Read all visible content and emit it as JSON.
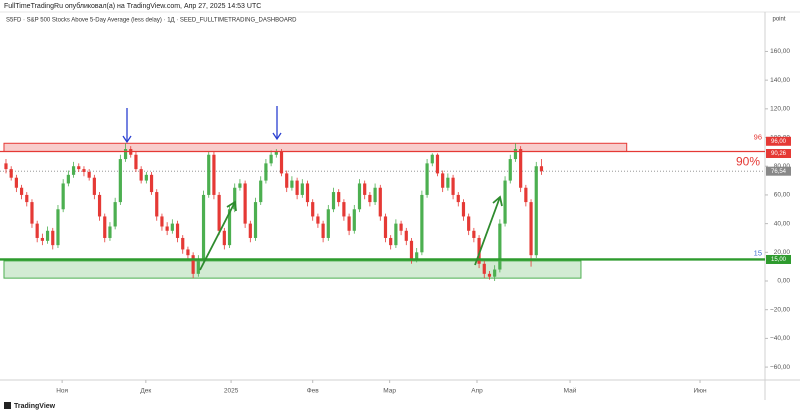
{
  "header": {
    "publisher": "FullTimeTradingRu опубликовал(а) на TradingView.com, Апр 27, 2025 14:53 UTC"
  },
  "footer": {
    "brand": "TradingView"
  },
  "chart_data": {
    "type": "candlestick",
    "title": "S5FD · S&P 500 Stocks Above 5-Day Average (less delay) · 1Д · SEED_FULLTIMETRADING_DASHBOARD",
    "y_axis_label": "point",
    "up_color": "#4caf50",
    "down_color": "#e53935",
    "open": [
      82,
      78,
      72,
      65,
      60,
      55,
      40,
      30,
      28,
      35,
      25,
      50,
      68,
      74,
      80,
      78,
      76,
      72,
      60,
      45,
      30,
      38,
      55,
      85,
      92,
      88,
      78,
      70,
      74,
      62,
      45,
      38,
      35,
      40,
      30,
      22,
      18,
      5,
      15,
      60,
      88,
      60,
      35,
      25,
      50,
      65,
      68,
      40,
      30,
      55,
      70,
      82,
      88,
      90,
      75,
      65,
      70,
      60,
      68,
      55,
      45,
      40,
      30,
      50,
      62,
      55,
      45,
      35,
      50,
      68,
      60,
      55,
      65,
      45,
      30,
      25,
      40,
      35,
      28,
      15,
      20,
      60,
      82,
      88,
      75,
      65,
      72,
      60,
      55,
      45,
      35,
      30,
      12,
      5,
      3,
      8,
      40,
      70,
      85,
      92,
      65,
      55,
      18,
      80
    ],
    "high": [
      85,
      80,
      74,
      67,
      62,
      57,
      42,
      33,
      38,
      37,
      53,
      71,
      77,
      83,
      82,
      80,
      78,
      74,
      62,
      47,
      41,
      58,
      88,
      96,
      94,
      90,
      80,
      76,
      76,
      64,
      47,
      41,
      43,
      42,
      32,
      24,
      20,
      18,
      63,
      90,
      90,
      62,
      37,
      53,
      68,
      71,
      70,
      42,
      58,
      73,
      85,
      91,
      92,
      92,
      77,
      73,
      72,
      71,
      70,
      57,
      47,
      42,
      53,
      65,
      64,
      57,
      47,
      53,
      71,
      70,
      62,
      68,
      67,
      47,
      32,
      43,
      42,
      37,
      30,
      23,
      63,
      85,
      89,
      89,
      77,
      75,
      74,
      62,
      57,
      47,
      37,
      32,
      14,
      7,
      11,
      43,
      73,
      88,
      96,
      94,
      67,
      57,
      83,
      85
    ],
    "low": [
      75,
      70,
      62,
      57,
      52,
      37,
      27,
      25,
      26,
      22,
      23,
      48,
      66,
      72,
      76,
      73,
      70,
      57,
      42,
      27,
      28,
      36,
      53,
      83,
      86,
      76,
      68,
      68,
      60,
      42,
      35,
      32,
      33,
      27,
      19,
      15,
      2,
      3,
      13,
      58,
      57,
      32,
      22,
      23,
      48,
      63,
      37,
      27,
      28,
      53,
      68,
      80,
      86,
      73,
      62,
      63,
      57,
      58,
      52,
      42,
      37,
      27,
      28,
      48,
      52,
      42,
      32,
      33,
      48,
      57,
      52,
      53,
      42,
      27,
      22,
      23,
      32,
      25,
      12,
      13,
      18,
      58,
      80,
      73,
      62,
      63,
      57,
      52,
      42,
      32,
      27,
      9,
      2,
      1,
      0,
      6,
      38,
      68,
      83,
      62,
      52,
      10,
      16,
      74
    ],
    "close": [
      78,
      72,
      65,
      60,
      55,
      40,
      30,
      28,
      35,
      25,
      50,
      68,
      74,
      80,
      78,
      76,
      72,
      60,
      45,
      30,
      38,
      55,
      85,
      92,
      88,
      78,
      70,
      74,
      62,
      45,
      38,
      35,
      40,
      30,
      22,
      18,
      5,
      15,
      60,
      88,
      60,
      35,
      25,
      50,
      65,
      68,
      40,
      30,
      55,
      70,
      82,
      88,
      90,
      75,
      65,
      70,
      60,
      68,
      55,
      45,
      40,
      30,
      50,
      62,
      55,
      45,
      35,
      50,
      68,
      60,
      55,
      65,
      45,
      30,
      25,
      40,
      35,
      28,
      15,
      20,
      60,
      82,
      88,
      75,
      65,
      72,
      60,
      55,
      45,
      35,
      30,
      12,
      5,
      3,
      8,
      40,
      70,
      85,
      92,
      65,
      55,
      18,
      80,
      76.54
    ],
    "xlim": [
      -1.15,
      146
    ],
    "xticks": [
      {
        "value": 10.8,
        "label": "Ноя"
      },
      {
        "value": 26.9,
        "label": "Дек"
      },
      {
        "value": 43.3,
        "label": "2025"
      },
      {
        "value": 59,
        "label": "Фев"
      },
      {
        "value": 73.8,
        "label": "Мар"
      },
      {
        "value": 90.6,
        "label": "Апр"
      },
      {
        "value": 108.5,
        "label": "Май"
      },
      {
        "value": 133.5,
        "label": "Июн"
      }
    ],
    "ylim": [
      -69,
      187.5
    ],
    "yticks": [
      {
        "value": 160,
        "label": "160,00"
      },
      {
        "value": 140,
        "label": "140,00"
      },
      {
        "value": 120,
        "label": "120,00"
      },
      {
        "value": 100,
        "label": "100,00"
      },
      {
        "value": 80,
        "label": "80,00"
      },
      {
        "value": 60,
        "label": "60,00"
      },
      {
        "value": 40,
        "label": "40,00"
      },
      {
        "value": 20,
        "label": "20,00"
      },
      {
        "value": 0,
        "label": "0,00"
      },
      {
        "value": -20,
        "label": "−20,00"
      },
      {
        "value": -40,
        "label": "−40,00"
      },
      {
        "value": -60,
        "label": "−60,00"
      }
    ],
    "zones": [
      {
        "from": 90.26,
        "to": 96,
        "x_from": 0,
        "x_to": 119.4,
        "color": "#e53935"
      },
      {
        "from": 2,
        "to": 14,
        "x_from": 0,
        "x_to": 110.6,
        "color": "#4caf50"
      }
    ],
    "levels": [
      {
        "value": 96,
        "text": "96",
        "tag": "96,00",
        "color": "#e53935",
        "text_color": "#e53935"
      },
      {
        "value": 90.26,
        "text": "90%",
        "tag": "90,26",
        "color": "#e53935",
        "text_color": "#e53935"
      },
      {
        "value": 15,
        "text": "15",
        "tag": "15,00",
        "color": "#2e9b2e",
        "text_color": "#3f6fd1"
      }
    ],
    "last_price": {
      "value": 76.54,
      "label": "76,54",
      "color": "#888888"
    }
  }
}
